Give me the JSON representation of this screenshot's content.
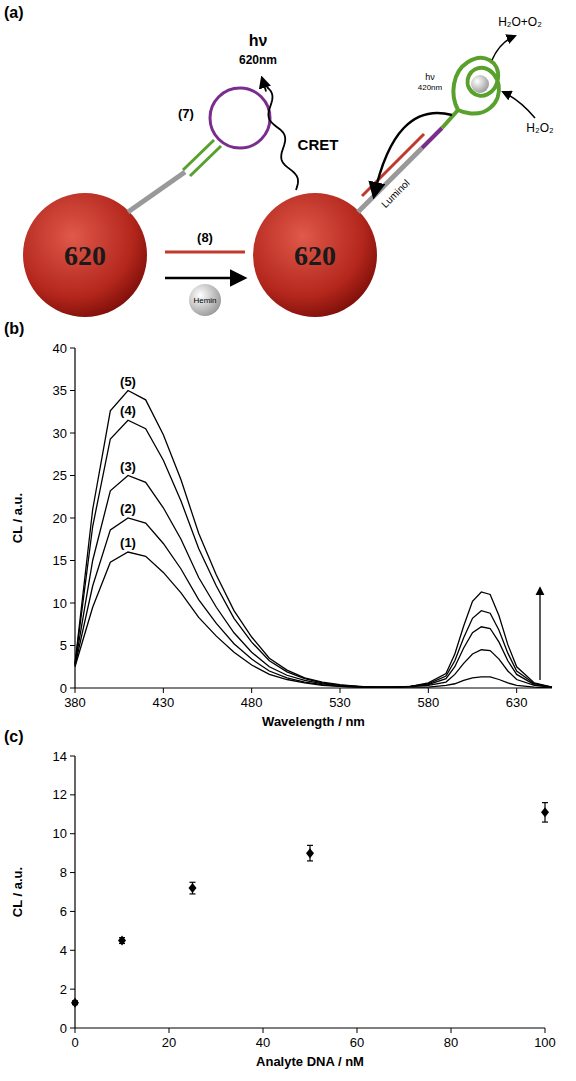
{
  "diagram": {
    "title": "(a)",
    "particles": [
      "620",
      "620"
    ],
    "hairpin_label": "(7)",
    "target_label": "(8)",
    "hemin": "Hemin",
    "emission": {
      "symbol": "hν",
      "wavelength": "620nm"
    },
    "cret": "CRET",
    "luminol_emission": {
      "symbol": "hν",
      "wavelength": "420nm"
    },
    "luminol": "Luminol",
    "products": "H₂O+O₂",
    "substrate": "H₂O₂"
  },
  "chart_data": [
    {
      "type": "line",
      "title": "(b)",
      "x_label": "Wavelength / nm",
      "y_label": "CL / a.u.",
      "x": [
        380,
        390,
        400,
        410,
        420,
        430,
        440,
        450,
        460,
        470,
        480,
        490,
        500,
        510,
        520,
        530,
        540,
        550,
        560,
        570,
        580,
        590,
        595,
        600,
        605,
        610,
        615,
        620,
        625,
        630,
        640,
        650
      ],
      "series": [
        {
          "name": "(1)",
          "color": "#000000",
          "values": [
            2.5,
            9.5,
            14.8,
            16,
            15.5,
            13.6,
            11.2,
            8.3,
            6.1,
            4.2,
            2.7,
            1.6,
            1.0,
            0.6,
            0.3,
            0.2,
            0.1,
            0.1,
            0.1,
            0.1,
            0.1,
            0.3,
            0.5,
            0.9,
            1.2,
            1.3,
            1.3,
            1.0,
            0.6,
            0.3,
            0.1,
            0
          ]
        },
        {
          "name": "(2)",
          "color": "#000000",
          "values": [
            2.6,
            12,
            18.6,
            20,
            19.4,
            17,
            14,
            10.4,
            7.6,
            5.2,
            3.4,
            2.0,
            1.2,
            0.7,
            0.4,
            0.2,
            0.1,
            0.1,
            0.1,
            0.2,
            0.3,
            0.7,
            1.6,
            2.9,
            4.0,
            4.5,
            4.4,
            3.4,
            2.0,
            1.0,
            0.3,
            0.1
          ]
        },
        {
          "name": "(3)",
          "color": "#000000",
          "values": [
            2.7,
            15,
            23.2,
            25,
            24.2,
            21.2,
            17.5,
            13,
            9.5,
            6.5,
            4.2,
            2.5,
            1.5,
            0.9,
            0.5,
            0.3,
            0.2,
            0.1,
            0.1,
            0.2,
            0.4,
            1.1,
            2.5,
            4.7,
            6.5,
            7.2,
            7.0,
            5.4,
            3.2,
            1.6,
            0.4,
            0.1
          ]
        },
        {
          "name": "(4)",
          "color": "#000000",
          "values": [
            2.8,
            19,
            29.3,
            31.5,
            30.5,
            26.8,
            22,
            16.4,
            12,
            8.2,
            5.4,
            3.2,
            1.9,
            1.1,
            0.6,
            0.3,
            0.2,
            0.1,
            0.1,
            0.2,
            0.5,
            1.4,
            3.2,
            5.9,
            8.2,
            9.1,
            8.8,
            6.8,
            4.1,
            2.0,
            0.5,
            0.1
          ]
        },
        {
          "name": "(5)",
          "color": "#000000",
          "values": [
            2.9,
            21,
            32.6,
            35,
            33.9,
            29.8,
            24.5,
            18.2,
            13.3,
            9.1,
            6.0,
            3.5,
            2.1,
            1.2,
            0.7,
            0.4,
            0.2,
            0.1,
            0.1,
            0.2,
            0.6,
            1.7,
            4.0,
            7.3,
            10.2,
            11.3,
            11.0,
            8.5,
            5.1,
            2.5,
            0.6,
            0.1
          ]
        }
      ],
      "xlim": [
        380,
        650
      ],
      "xticks": [
        380,
        430,
        480,
        530,
        580,
        630
      ],
      "ylim": [
        0,
        40
      ],
      "yticks": [
        0,
        5,
        10,
        15,
        20,
        25,
        30,
        35,
        40
      ]
    },
    {
      "type": "scatter",
      "title": "(c)",
      "x_label": "Analyte DNA / nM",
      "y_label": "CL / a.u.",
      "x": [
        0,
        10,
        25,
        50,
        100
      ],
      "values": [
        1.3,
        4.5,
        7.2,
        9.0,
        11.1
      ],
      "errors": [
        0.1,
        0.15,
        0.3,
        0.4,
        0.5
      ],
      "color": "#000000",
      "marker": "diamond",
      "xlim": [
        0,
        100
      ],
      "xticks": [
        0,
        20,
        40,
        60,
        80,
        100
      ],
      "ylim": [
        0,
        14
      ],
      "yticks": [
        0,
        2,
        4,
        6,
        8,
        10,
        12,
        14
      ]
    }
  ]
}
